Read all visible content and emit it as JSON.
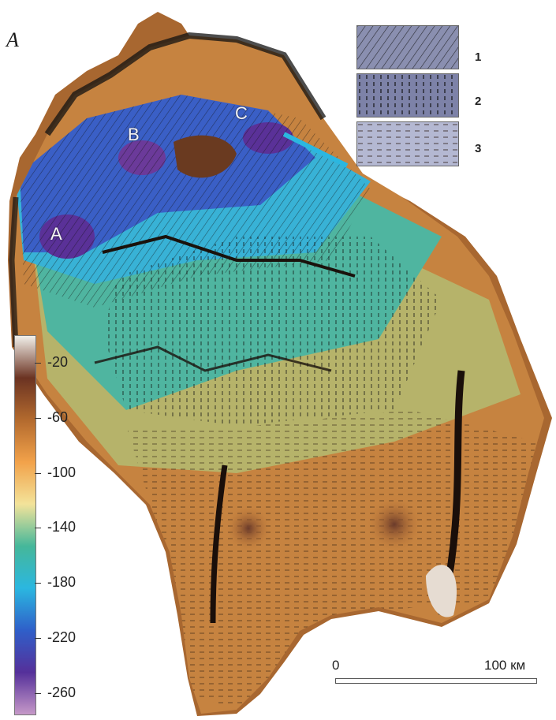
{
  "figure": {
    "panel_label": "A",
    "site_labels": [
      "A",
      "B",
      "C"
    ]
  },
  "legend": {
    "items": [
      {
        "number": "1",
        "pattern": "diagonal-hatch"
      },
      {
        "number": "2",
        "pattern": "vertical-dashes"
      },
      {
        "number": "3",
        "pattern": "horizontal-dashes"
      }
    ]
  },
  "colorbar": {
    "labels": [
      "-20",
      "-60",
      "-100",
      "-140",
      "-180",
      "-220",
      "-260"
    ],
    "range": [
      -275,
      0
    ],
    "colors": [
      "#f2f0ea",
      "#6b3322",
      "#b36a2e",
      "#f2a24a",
      "#f3e39a",
      "#45b79a",
      "#2bb7e0",
      "#2f5fc9",
      "#55309a",
      "#c699c8"
    ]
  },
  "scale": {
    "start_label": "0",
    "end_label": "100 км"
  }
}
